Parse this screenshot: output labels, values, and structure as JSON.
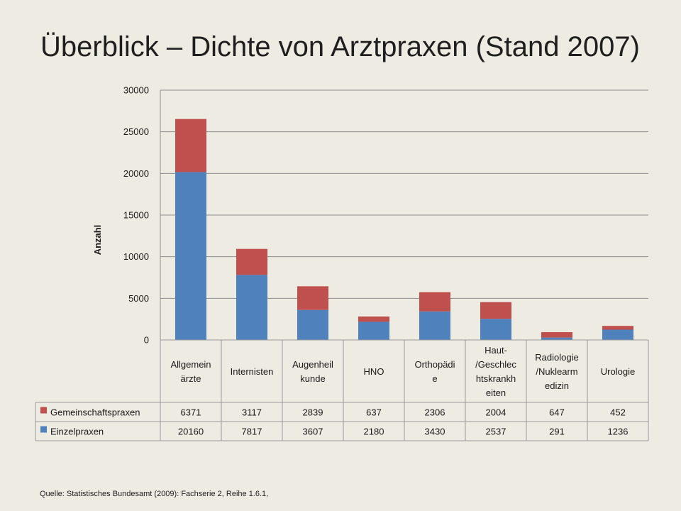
{
  "title": "Überblick – Dichte von Arztpraxen (Stand 2007)",
  "source": "Quelle: Statistisches Bundesamt (2009): Fachserie 2, Reihe 1.6.1,",
  "chart_data": {
    "type": "bar",
    "stacked": true,
    "ylabel": "Anzahl",
    "ylim": [
      0,
      30000
    ],
    "yticks": [
      0,
      5000,
      10000,
      15000,
      20000,
      25000,
      30000
    ],
    "grid": true,
    "categories": [
      [
        "Allgemein",
        "ärzte"
      ],
      [
        "Internisten"
      ],
      [
        "Augenheil",
        "kunde"
      ],
      [
        "HNO"
      ],
      [
        "Orthopädi",
        "e"
      ],
      [
        "Haut-",
        "/Geschlec",
        "htskrankh",
        "eiten"
      ],
      [
        "Radiologie",
        "/Nuklearm",
        "edizin"
      ],
      [
        "Urologie"
      ]
    ],
    "series": [
      {
        "name": "Einzelpraxen",
        "color": "#4f81bd",
        "values": [
          20160,
          7817,
          3607,
          2180,
          3430,
          2537,
          291,
          1236
        ]
      },
      {
        "name": "Gemeinschaftspraxen",
        "color": "#c0504d",
        "values": [
          6371,
          3117,
          2839,
          637,
          2306,
          2004,
          647,
          452
        ]
      }
    ],
    "data_table": true,
    "table_row_order": [
      "Gemeinschaftspraxen",
      "Einzelpraxen"
    ]
  }
}
